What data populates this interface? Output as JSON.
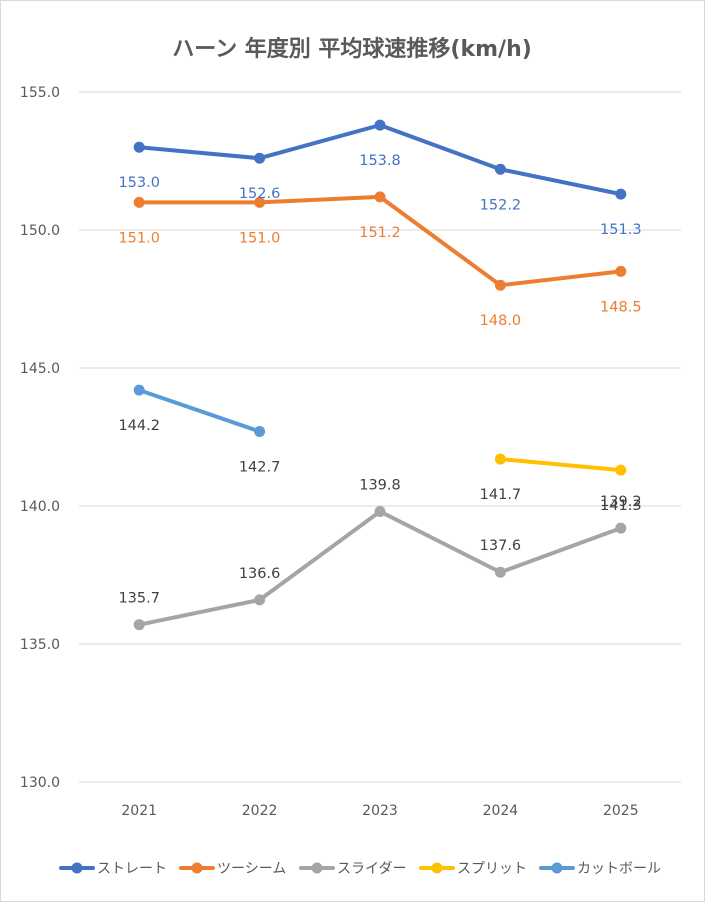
{
  "chart_data": {
    "type": "line",
    "title": "ハーン 年度別 平均球速推移(km/h)",
    "xlabel": "",
    "ylabel": "",
    "categories": [
      "2021",
      "2022",
      "2023",
      "2024",
      "2025"
    ],
    "ylim": [
      130,
      155
    ],
    "yticks": [
      "130.0",
      "135.0",
      "140.0",
      "145.0",
      "150.0",
      "155.0"
    ],
    "grid": true,
    "legend_position": "bottom",
    "series": [
      {
        "name": "ストレート",
        "color": "#4472C4",
        "values": [
          153.0,
          152.6,
          153.8,
          152.2,
          151.3
        ],
        "labels": [
          "153.0",
          "152.6",
          "153.8",
          "152.2",
          "151.3"
        ],
        "label_color": "#4472C4",
        "label_pos": "below"
      },
      {
        "name": "ツーシーム",
        "color": "#ED7D31",
        "values": [
          151.0,
          151.0,
          151.2,
          148.0,
          148.5
        ],
        "labels": [
          "151.0",
          "151.0",
          "151.2",
          "148.0",
          "148.5"
        ],
        "label_color": "#ED7D31",
        "label_pos": "below"
      },
      {
        "name": "スライダー",
        "color": "#A5A5A5",
        "values": [
          135.7,
          136.6,
          139.8,
          137.6,
          139.2
        ],
        "labels": [
          "135.7",
          "136.6",
          "139.8",
          "137.6",
          "139.2"
        ],
        "label_color": "#404040",
        "label_pos": "above"
      },
      {
        "name": "スプリット",
        "color": "#FFC000",
        "values": [
          null,
          null,
          null,
          141.7,
          141.3
        ],
        "labels": [
          null,
          null,
          null,
          "141.7",
          "141.3"
        ],
        "label_color": "#404040",
        "label_pos": "below"
      },
      {
        "name": "カットボール",
        "color": "#5B9BD5",
        "values": [
          144.2,
          142.7,
          null,
          null,
          null
        ],
        "labels": [
          "144.2",
          "142.7",
          null,
          null,
          null
        ],
        "label_color": "#404040",
        "label_pos": "below"
      }
    ]
  }
}
